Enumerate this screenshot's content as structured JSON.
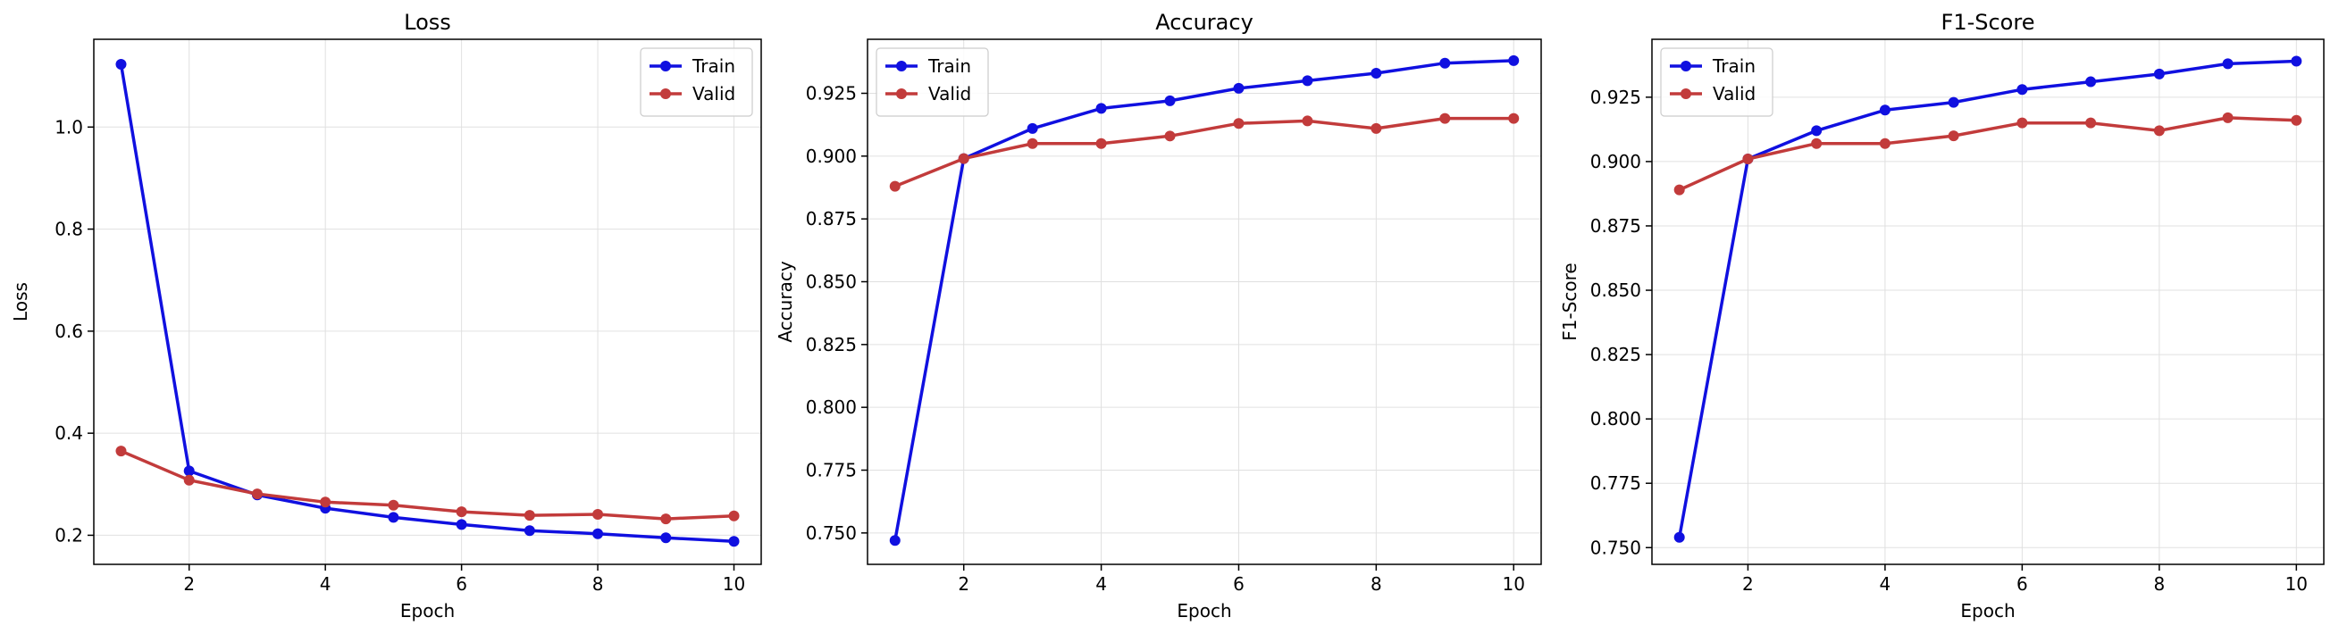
{
  "chart_data": [
    {
      "type": "line",
      "title": "Loss",
      "xlabel": "Epoch",
      "ylabel": "Loss",
      "x": [
        1,
        2,
        3,
        4,
        5,
        6,
        7,
        8,
        9,
        10
      ],
      "xlim": [
        0.6,
        10.4
      ],
      "ylim": [
        0.143,
        1.172
      ],
      "xticks": [
        2,
        4,
        6,
        8,
        10
      ],
      "yticks": [
        0.2,
        0.4,
        0.6,
        0.8,
        1.0
      ],
      "yticklabels": [
        "0.2",
        "0.4",
        "0.6",
        "0.8",
        "1.0"
      ],
      "grid": true,
      "legend_position": "top-right",
      "series": [
        {
          "name": "Train",
          "color": "#1010e0",
          "values": [
            1.123,
            0.326,
            0.279,
            0.253,
            0.235,
            0.221,
            0.209,
            0.203,
            0.195,
            0.188
          ]
        },
        {
          "name": "Valid",
          "color": "#c23b3b",
          "values": [
            0.365,
            0.308,
            0.281,
            0.265,
            0.259,
            0.246,
            0.239,
            0.241,
            0.232,
            0.238
          ]
        }
      ]
    },
    {
      "type": "line",
      "title": "Accuracy",
      "xlabel": "Epoch",
      "ylabel": "Accuracy",
      "x": [
        1,
        2,
        3,
        4,
        5,
        6,
        7,
        8,
        9,
        10
      ],
      "xlim": [
        0.6,
        10.4
      ],
      "ylim": [
        0.7375,
        0.9465
      ],
      "xticks": [
        2,
        4,
        6,
        8,
        10
      ],
      "yticks": [
        0.75,
        0.775,
        0.8,
        0.825,
        0.85,
        0.875,
        0.9,
        0.925
      ],
      "yticklabels": [
        "0.750",
        "0.775",
        "0.800",
        "0.825",
        "0.850",
        "0.875",
        "0.900",
        "0.925"
      ],
      "grid": true,
      "legend_position": "top-left",
      "series": [
        {
          "name": "Train",
          "color": "#1010e0",
          "values": [
            0.747,
            0.899,
            0.911,
            0.919,
            0.922,
            0.927,
            0.93,
            0.933,
            0.937,
            0.938
          ]
        },
        {
          "name": "Valid",
          "color": "#c23b3b",
          "values": [
            0.888,
            0.899,
            0.905,
            0.905,
            0.908,
            0.913,
            0.914,
            0.911,
            0.915,
            0.915
          ]
        }
      ]
    },
    {
      "type": "line",
      "title": "F1-Score",
      "xlabel": "Epoch",
      "ylabel": "F1-Score",
      "x": [
        1,
        2,
        3,
        4,
        5,
        6,
        7,
        8,
        9,
        10
      ],
      "xlim": [
        0.6,
        10.4
      ],
      "ylim": [
        0.7435,
        0.9475
      ],
      "xticks": [
        2,
        4,
        6,
        8,
        10
      ],
      "yticks": [
        0.75,
        0.775,
        0.8,
        0.825,
        0.85,
        0.875,
        0.9,
        0.925
      ],
      "yticklabels": [
        "0.750",
        "0.775",
        "0.800",
        "0.825",
        "0.850",
        "0.875",
        "0.900",
        "0.925"
      ],
      "grid": true,
      "legend_position": "top-left",
      "series": [
        {
          "name": "Train",
          "color": "#1010e0",
          "values": [
            0.754,
            0.901,
            0.912,
            0.92,
            0.923,
            0.928,
            0.931,
            0.934,
            0.938,
            0.939
          ]
        },
        {
          "name": "Valid",
          "color": "#c23b3b",
          "values": [
            0.889,
            0.901,
            0.907,
            0.907,
            0.91,
            0.915,
            0.915,
            0.912,
            0.917,
            0.916
          ]
        }
      ]
    }
  ]
}
